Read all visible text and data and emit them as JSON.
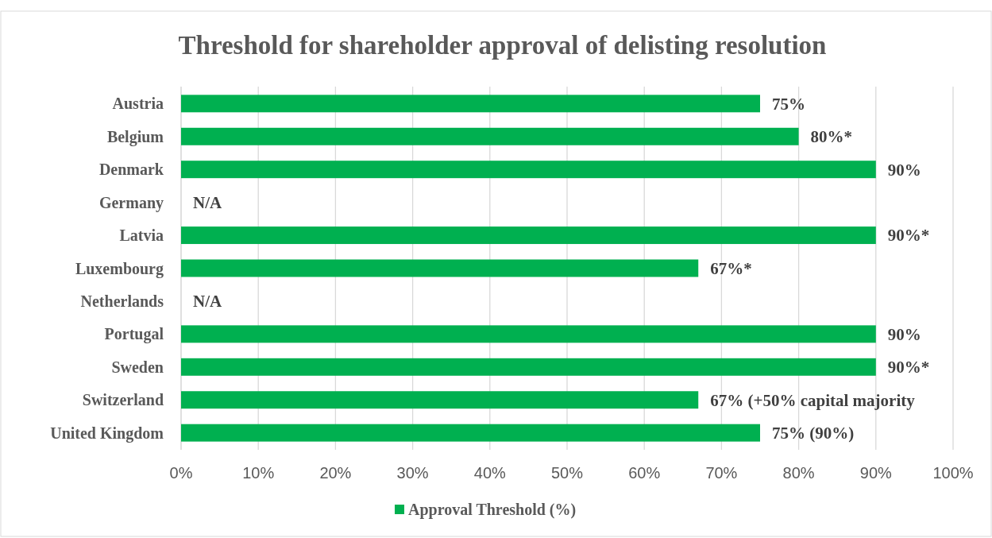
{
  "chart_data": {
    "type": "bar",
    "orientation": "horizontal",
    "title": "Threshold for shareholder approval of delisting resolution",
    "categories": [
      "Austria",
      "Belgium",
      "Denmark",
      "Germany",
      "Latvia",
      "Luxembourg",
      "Netherlands",
      "Portugal",
      "Sweden",
      "Switzerland",
      "United Kingdom"
    ],
    "series": [
      {
        "name": "Approval Threshold (%)",
        "color": "#00b050",
        "values": [
          75,
          80,
          90,
          null,
          90,
          67,
          null,
          90,
          90,
          67,
          75
        ],
        "value_labels": [
          "75%",
          "80%*",
          "90%",
          "N/A",
          "90%*",
          "67%*",
          "N/A",
          "90%",
          "90%*",
          "67% (+50% capital majority",
          "75% (90%)"
        ]
      }
    ],
    "xlim": [
      0,
      100
    ],
    "xticks": [
      {
        "value": 0,
        "label": "0%"
      },
      {
        "value": 10,
        "label": "10%"
      },
      {
        "value": 20,
        "label": "20%"
      },
      {
        "value": 30,
        "label": "30%"
      },
      {
        "value": 40,
        "label": "40%"
      },
      {
        "value": 50,
        "label": "50%"
      },
      {
        "value": 60,
        "label": "60%"
      },
      {
        "value": 70,
        "label": "70%"
      },
      {
        "value": 80,
        "label": "80%"
      },
      {
        "value": 90,
        "label": "90%"
      },
      {
        "value": 100,
        "label": "100%"
      }
    ],
    "grid": "x",
    "legend": "bottom"
  }
}
